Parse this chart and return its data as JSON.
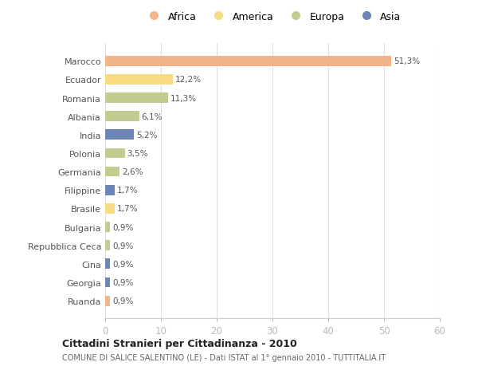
{
  "categories": [
    "Marocco",
    "Ecuador",
    "Romania",
    "Albania",
    "India",
    "Polonia",
    "Germania",
    "Filippine",
    "Brasile",
    "Bulgaria",
    "Repubblica Ceca",
    "Cina",
    "Georgia",
    "Ruanda"
  ],
  "values": [
    51.3,
    12.2,
    11.3,
    6.1,
    5.2,
    3.5,
    2.6,
    1.7,
    1.7,
    0.9,
    0.9,
    0.9,
    0.9,
    0.9
  ],
  "labels": [
    "51,3%",
    "12,2%",
    "11,3%",
    "6,1%",
    "5,2%",
    "3,5%",
    "2,6%",
    "1,7%",
    "1,7%",
    "0,9%",
    "0,9%",
    "0,9%",
    "0,9%",
    "0,9%"
  ],
  "colors": [
    "#F2B48A",
    "#F7DC82",
    "#C2CC90",
    "#C2CC90",
    "#6B85B5",
    "#C2CC90",
    "#C2CC90",
    "#6B85B5",
    "#F7DC82",
    "#C2CC90",
    "#C2CC90",
    "#6B85B5",
    "#6B85B5",
    "#F2B48A"
  ],
  "legend_labels": [
    "Africa",
    "America",
    "Europa",
    "Asia"
  ],
  "legend_colors": [
    "#F2B48A",
    "#F7DC82",
    "#C2CC90",
    "#6B85B5"
  ],
  "title": "Cittadini Stranieri per Cittadinanza - 2010",
  "subtitle": "COMUNE DI SALICE SALENTINO (LE) - Dati ISTAT al 1° gennaio 2010 - TUTTITALIA.IT",
  "xlim": [
    0,
    60
  ],
  "xticks": [
    0,
    10,
    20,
    30,
    40,
    50,
    60
  ],
  "background_color": "#ffffff",
  "grid_color": "#e0e0e0"
}
